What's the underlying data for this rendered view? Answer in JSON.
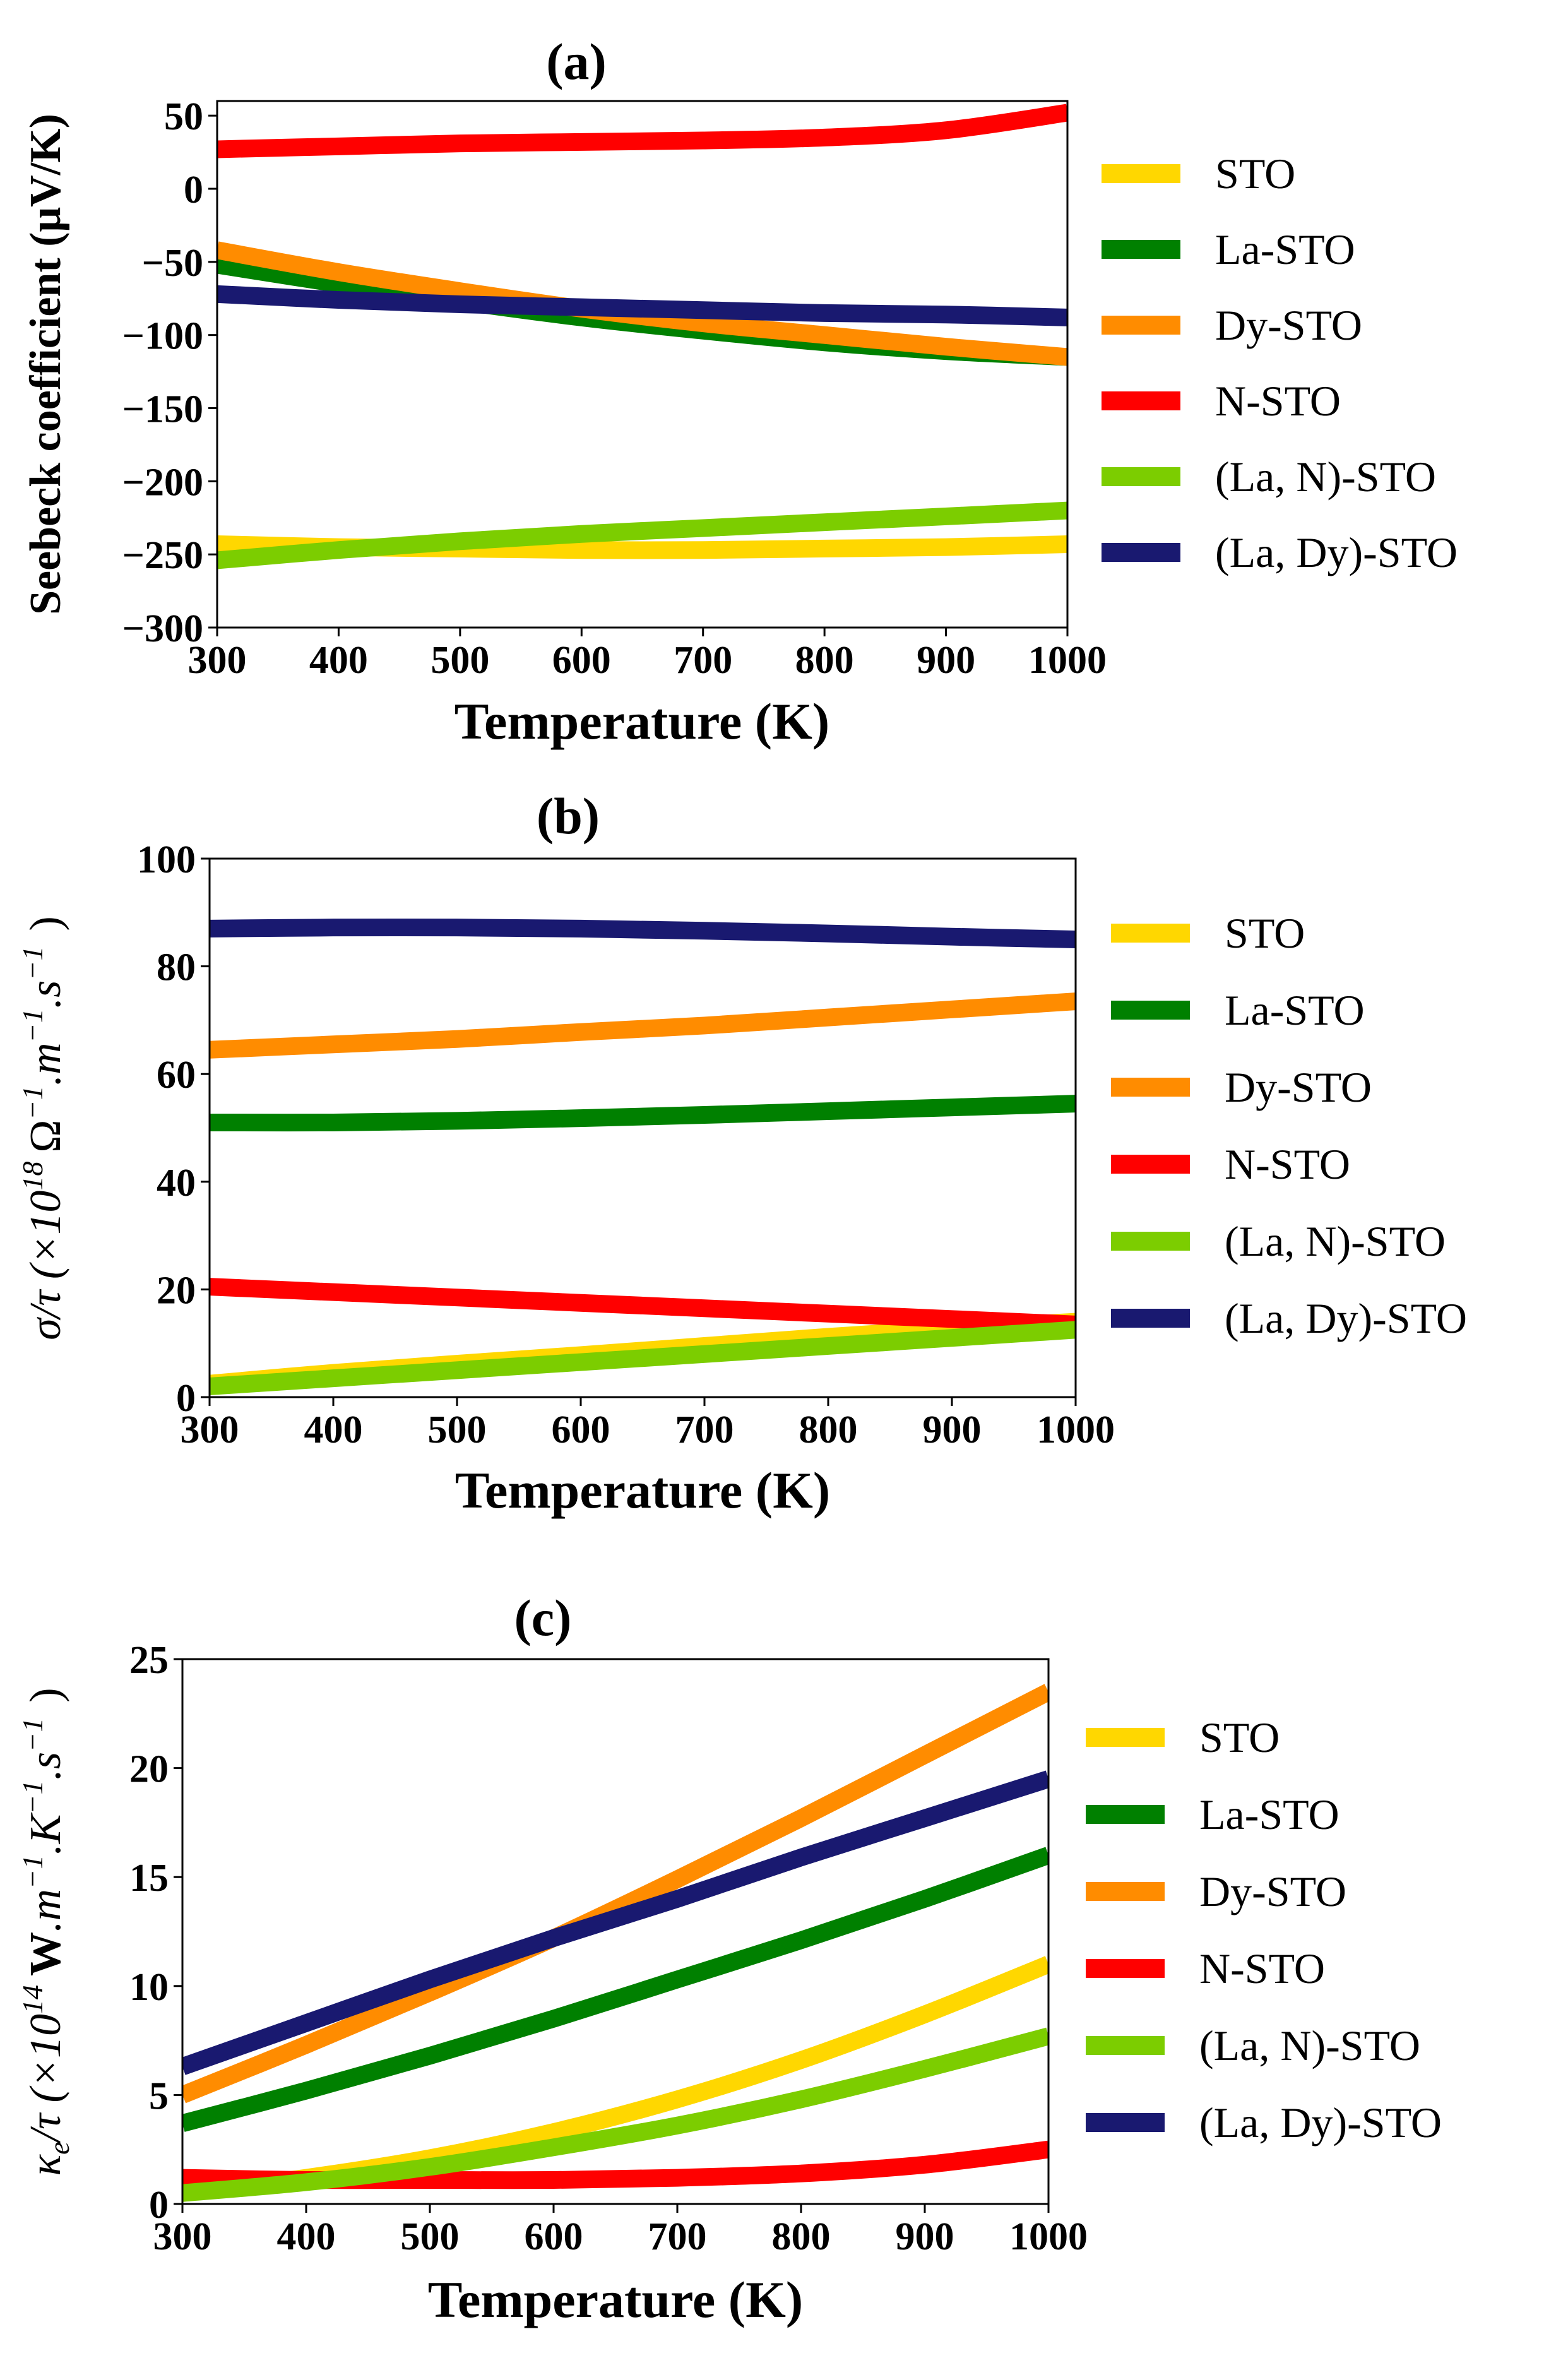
{
  "chart_data": [
    {
      "type": "line",
      "title": "(a)",
      "xlabel": "Temperature (K)",
      "ylabel": "Seebeck coefficient (μV/K)",
      "xlim": [
        300,
        1000
      ],
      "ylim": [
        -300,
        60
      ],
      "xticks": [
        "300",
        "400",
        "500",
        "600",
        "700",
        "800",
        "900",
        "1000"
      ],
      "yticks": [
        "50",
        "0",
        "−50",
        "−100",
        "−150",
        "−200",
        "−250",
        "−300"
      ],
      "ytick_values": [
        50,
        0,
        -50,
        -100,
        -150,
        -200,
        -250,
        -300
      ],
      "legend_position": "right",
      "x": [
        300,
        400,
        500,
        600,
        700,
        800,
        900,
        1000
      ],
      "series": [
        {
          "name": "STO",
          "color": "#ffd700",
          "values": [
            -243,
            -245,
            -246,
            -247,
            -247,
            -246,
            -245,
            -243
          ]
        },
        {
          "name": "La-STO",
          "color": "#008000",
          "values": [
            -52,
            -65,
            -77,
            -88,
            -97,
            -105,
            -111,
            -115
          ]
        },
        {
          "name": "Dy-STO",
          "color": "#ff8c00",
          "values": [
            -42,
            -57,
            -70,
            -82,
            -92,
            -100,
            -108,
            -115
          ]
        },
        {
          "name": "N-STO",
          "color": "#ff0000",
          "values": [
            27,
            29,
            31,
            32,
            33,
            35,
            40,
            52
          ]
        },
        {
          "name": "(La, N)-STO",
          "color": "#7ccd00",
          "values": [
            -254,
            -247,
            -241,
            -236,
            -232,
            -228,
            -224,
            -220
          ]
        },
        {
          "name": "(La, Dy)-STO",
          "color": "#191970",
          "values": [
            -72,
            -76,
            -79,
            -81,
            -83,
            -85,
            -86,
            -88
          ]
        }
      ]
    },
    {
      "type": "line",
      "title": "(b)",
      "xlabel": "Temperature (K)",
      "ylabel": "σ/τ (×10^18 Ω^−1.m^−1.s^−1 )",
      "ylabel_main": "σ/τ (×10",
      "ylabel_exp": "18",
      "ylabel_tail": "Ω",
      "ylabel_tail2": ".m",
      "ylabel_tail3": ".s",
      "ylabel_minus1": "−1",
      "ylabel_close": ")",
      "xlim": [
        300,
        1000
      ],
      "ylim": [
        0,
        100
      ],
      "xticks": [
        "300",
        "400",
        "500",
        "600",
        "700",
        "800",
        "900",
        "1000"
      ],
      "yticks": [
        "100",
        "80",
        "60",
        "40",
        "20",
        "0"
      ],
      "ytick_values": [
        100,
        80,
        60,
        40,
        20,
        0
      ],
      "legend_position": "right",
      "x": [
        300,
        400,
        500,
        600,
        700,
        800,
        900,
        1000
      ],
      "series": [
        {
          "name": "STO",
          "color": "#ffd700",
          "values": [
            2.5,
            4.5,
            6.2,
            7.8,
            9.5,
            11.2,
            12.7,
            14.0
          ]
        },
        {
          "name": "La-STO",
          "color": "#008000",
          "values": [
            51,
            51,
            51.3,
            51.8,
            52.4,
            53.1,
            53.8,
            54.5
          ]
        },
        {
          "name": "Dy-STO",
          "color": "#ff8c00",
          "values": [
            64.5,
            65.5,
            66.5,
            67.8,
            69.0,
            70.5,
            72.0,
            73.5
          ]
        },
        {
          "name": "N-STO",
          "color": "#ff0000",
          "values": [
            20.5,
            19.5,
            18.5,
            17.5,
            16.5,
            15.5,
            14.5,
            13.5
          ]
        },
        {
          "name": "(La, N)-STO",
          "color": "#7ccd00",
          "values": [
            2.0,
            3.5,
            5.0,
            6.5,
            8.0,
            9.5,
            11.0,
            12.5
          ]
        },
        {
          "name": "(La, Dy)-STO",
          "color": "#191970",
          "values": [
            87,
            87.2,
            87.2,
            87,
            86.6,
            86.1,
            85.5,
            85.0
          ]
        }
      ]
    },
    {
      "type": "line",
      "title": "(c)",
      "xlabel": "Temperature (K)",
      "ylabel": "κe/τ (×10^14 W.m^−1.K^−1.s^−1 )",
      "ylabel_main": "κ",
      "ylabel_sub": "e",
      "ylabel_mid": "/τ (×10",
      "ylabel_exp": "14",
      "ylabel_bold": "W",
      "ylabel_tail": ".m",
      "ylabel_tail2": ".K",
      "ylabel_tail3": ".s",
      "ylabel_minus1": "−1",
      "ylabel_close": ")",
      "xlim": [
        300,
        1000
      ],
      "ylim": [
        0,
        25
      ],
      "xticks": [
        "300",
        "400",
        "500",
        "600",
        "700",
        "800",
        "900",
        "1000"
      ],
      "yticks": [
        "25",
        "20",
        "15",
        "10",
        "5",
        "0"
      ],
      "ytick_values": [
        25,
        20,
        15,
        10,
        5,
        0
      ],
      "legend_position": "right",
      "x": [
        300,
        400,
        500,
        600,
        700,
        800,
        900,
        1000
      ],
      "series": [
        {
          "name": "STO",
          "color": "#ffd700",
          "values": [
            0.5,
            1.2,
            2.1,
            3.3,
            4.8,
            6.6,
            8.7,
            11.0
          ]
        },
        {
          "name": "La-STO",
          "color": "#008000",
          "values": [
            3.7,
            5.2,
            6.8,
            8.5,
            10.3,
            12.1,
            14.0,
            16.0
          ]
        },
        {
          "name": "Dy-STO",
          "color": "#ff8c00",
          "values": [
            5.0,
            7.3,
            9.7,
            12.2,
            14.9,
            17.7,
            20.6,
            23.5
          ]
        },
        {
          "name": "N-STO",
          "color": "#ff0000",
          "values": [
            1.2,
            1.1,
            1.1,
            1.1,
            1.2,
            1.4,
            1.8,
            2.5
          ]
        },
        {
          "name": "(La, N)-STO",
          "color": "#7ccd00",
          "values": [
            0.5,
            1.0,
            1.7,
            2.6,
            3.6,
            4.8,
            6.2,
            7.7
          ]
        },
        {
          "name": "(La, Dy)-STO",
          "color": "#191970",
          "values": [
            6.3,
            8.3,
            10.3,
            12.2,
            14.0,
            15.9,
            17.7,
            19.5
          ]
        }
      ]
    }
  ]
}
